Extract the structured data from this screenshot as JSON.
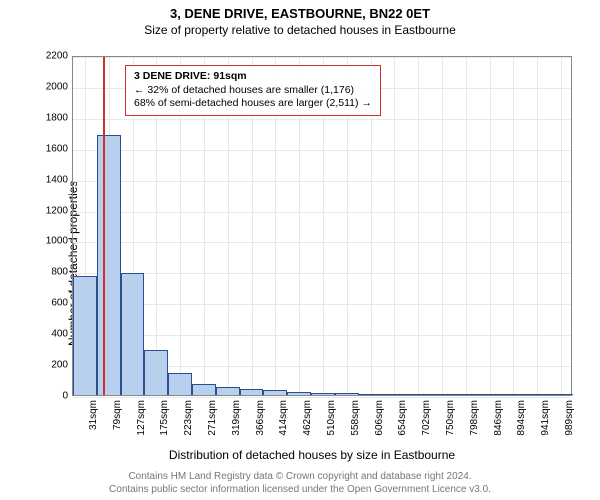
{
  "title": "3, DENE DRIVE, EASTBOURNE, BN22 0ET",
  "subtitle": "Size of property relative to detached houses in Eastbourne",
  "chart": {
    "type": "histogram",
    "ylabel": "Number of detached properties",
    "xlabel": "Distribution of detached houses by size in Eastbourne",
    "ylim": [
      0,
      2200
    ],
    "yticks": [
      0,
      200,
      400,
      600,
      800,
      1000,
      1200,
      1400,
      1600,
      1800,
      2000,
      2200
    ],
    "x_categories": [
      "31sqm",
      "79sqm",
      "127sqm",
      "175sqm",
      "223sqm",
      "271sqm",
      "319sqm",
      "366sqm",
      "414sqm",
      "462sqm",
      "510sqm",
      "558sqm",
      "606sqm",
      "654sqm",
      "702sqm",
      "750sqm",
      "798sqm",
      "846sqm",
      "894sqm",
      "941sqm",
      "989sqm"
    ],
    "bar_values": [
      770,
      1680,
      790,
      290,
      145,
      70,
      55,
      40,
      30,
      20,
      15,
      10,
      6,
      5,
      4,
      3,
      2,
      2,
      1,
      1,
      1
    ],
    "bar_fill": "#b9cfee",
    "bar_stroke": "#2a4f8f",
    "grid_color": "#e8e8e8",
    "background": "#ffffff",
    "plot_border": "#888888",
    "marker": {
      "index_after": 1,
      "color": "#d03030"
    },
    "annotation": {
      "line1": "3 DENE DRIVE: 91sqm",
      "line2": "← 32% of detached houses are smaller (1,176)",
      "line3": "68% of semi-detached houses are larger (2,511) →",
      "border": "#d03030"
    },
    "title_fontsize": 13,
    "subtitle_fontsize": 12,
    "tick_fontsize": 10,
    "label_fontsize": 12
  },
  "footer": {
    "line1": "Contains HM Land Registry data © Crown copyright and database right 2024.",
    "line2": "Contains public sector information licensed under the Open Government Licence v3.0."
  }
}
